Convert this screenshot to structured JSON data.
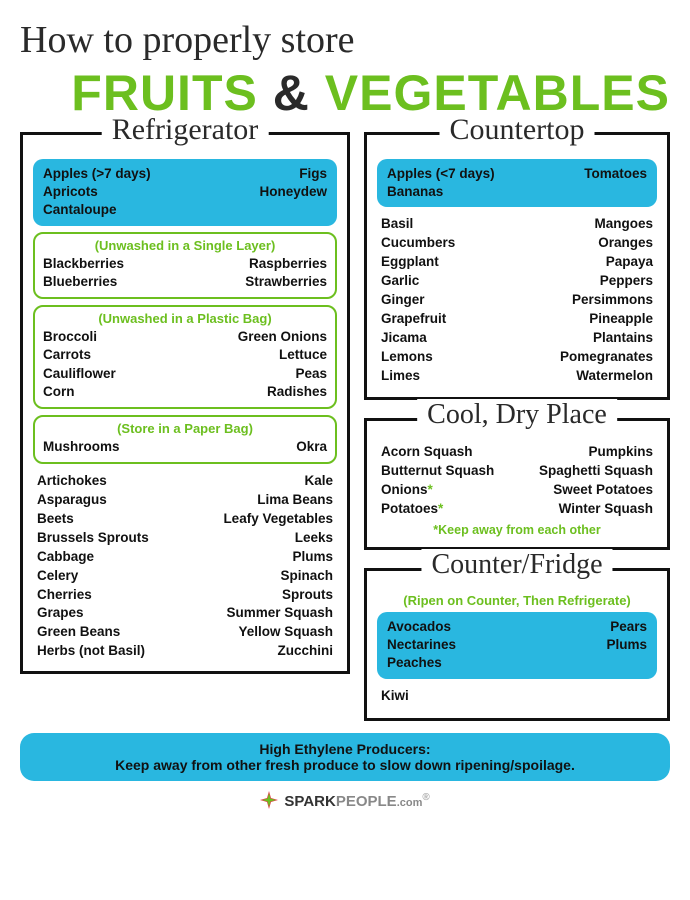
{
  "colors": {
    "green": "#6cbf1f",
    "blue": "#29b7e0",
    "dark": "#2a2a2a",
    "black": "#111111",
    "bg": "#ffffff"
  },
  "title": {
    "line1": "How to properly store",
    "fruits": "FRUITS",
    "amp": "&",
    "vegetables": "VEGETABLES"
  },
  "refrigerator": {
    "heading": "Refrigerator",
    "blue_items": {
      "left": [
        "Apples (>7 days)",
        "Apricots",
        "Cantaloupe"
      ],
      "right": [
        "Figs",
        "Honeydew"
      ]
    },
    "group1": {
      "subtitle": "(Unwashed in a Single Layer)",
      "left": [
        "Blackberries",
        "Blueberries"
      ],
      "right": [
        "Raspberries",
        "Strawberries"
      ]
    },
    "group2": {
      "subtitle": "(Unwashed in a Plastic Bag)",
      "left": [
        "Broccoli",
        "Carrots",
        "Cauliflower",
        "Corn"
      ],
      "right": [
        "Green Onions",
        "Lettuce",
        "Peas",
        "Radishes"
      ]
    },
    "group3": {
      "subtitle": "(Store in a Paper Bag)",
      "left": [
        "Mushrooms"
      ],
      "right": [
        "Okra"
      ]
    },
    "plain": {
      "left": [
        "Artichokes",
        "Asparagus",
        "Beets",
        "Brussels Sprouts",
        "Cabbage",
        "Celery",
        "Cherries",
        "Grapes",
        "Green Beans",
        "Herbs (not Basil)"
      ],
      "right": [
        "Kale",
        "Lima Beans",
        "Leafy Vegetables",
        "Leeks",
        "Plums",
        "Spinach",
        "Sprouts",
        "Summer Squash",
        "Yellow Squash",
        "Zucchini"
      ]
    }
  },
  "countertop": {
    "heading": "Countertop",
    "blue_items": {
      "left": [
        "Apples (<7 days)",
        "Bananas"
      ],
      "right": [
        "Tomatoes"
      ]
    },
    "plain": {
      "left": [
        "Basil",
        "Cucumbers",
        "Eggplant",
        "Garlic",
        "Ginger",
        "Grapefruit",
        "Jicama",
        "Lemons",
        "Limes"
      ],
      "right": [
        "Mangoes",
        "Oranges",
        "Papaya",
        "Peppers",
        "Persimmons",
        "Pineapple",
        "Plantains",
        "Pomegranates",
        "Watermelon"
      ]
    }
  },
  "cooldry": {
    "heading": "Cool, Dry Place",
    "plain": {
      "left": [
        "Acorn Squash",
        "Butternut Squash",
        "Onions*",
        "Potatoes*"
      ],
      "right": [
        "Pumpkins",
        "Spaghetti Squash",
        "Sweet Potatoes",
        "Winter Squash"
      ]
    },
    "footnote": "*Keep away from each other"
  },
  "counterfridge": {
    "heading": "Counter/Fridge",
    "subtitle": "(Ripen on Counter, Then Refrigerate)",
    "blue_items": {
      "left": [
        "Avocados",
        "Nectarines",
        "Peaches"
      ],
      "right": [
        "Pears",
        "Plums"
      ]
    },
    "plain": {
      "left": [
        "Kiwi"
      ],
      "right": []
    }
  },
  "ethylene": {
    "line1": "High Ethylene Producers:",
    "line2": "Keep away from other fresh produce to slow down ripening/spoilage."
  },
  "logo": {
    "brand1": "SPARK",
    "brand2": "PEOPLE",
    "suffix": ".com"
  }
}
